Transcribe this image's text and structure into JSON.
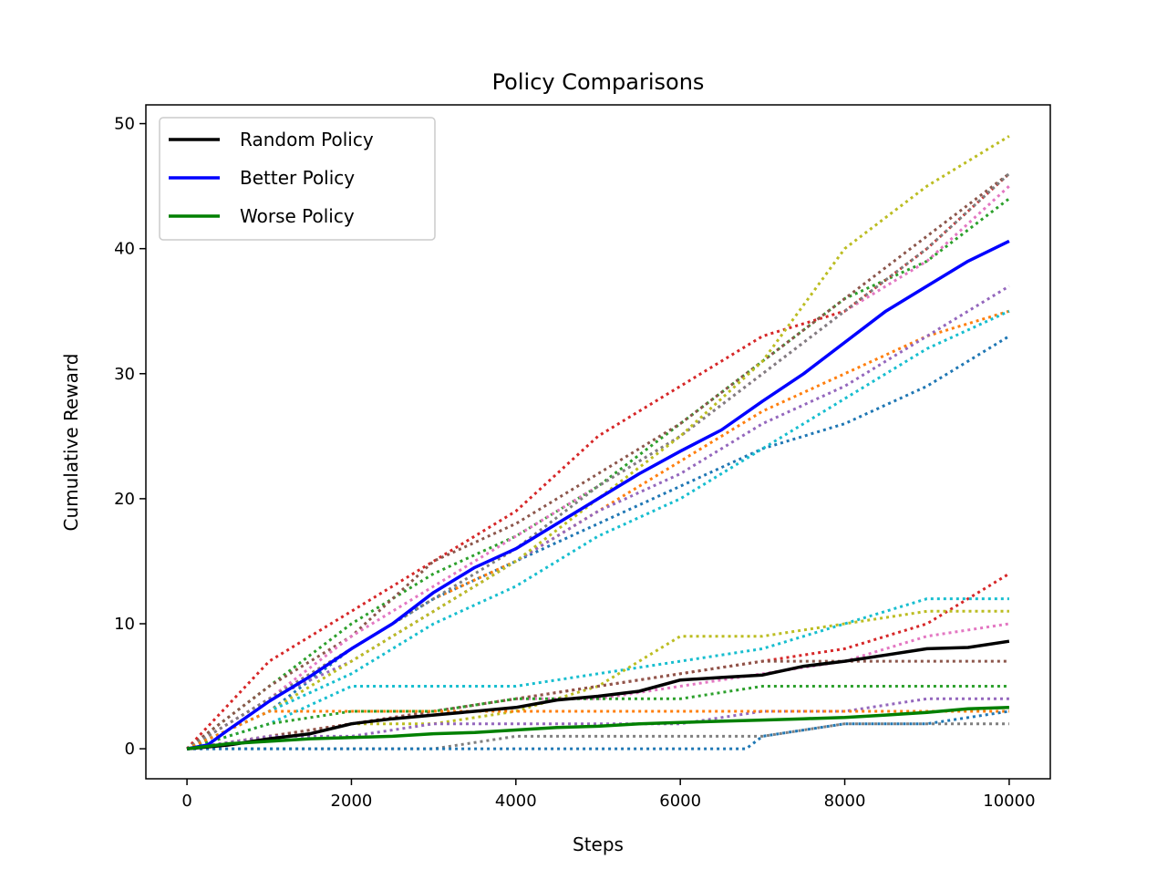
{
  "chart_data": {
    "type": "line",
    "title": "Policy Comparisons",
    "xlabel": "Steps",
    "ylabel": "Cumulative Reward",
    "xlim": [
      -500,
      10500
    ],
    "ylim": [
      -2.4,
      51.5
    ],
    "xticks": [
      0,
      2000,
      4000,
      6000,
      8000,
      10000
    ],
    "yticks": [
      0,
      10,
      20,
      30,
      40,
      50
    ],
    "grid": false,
    "legend_position": "upper-left",
    "series": [
      {
        "name": "Random Policy",
        "color": "#000000",
        "style": "solid",
        "in_legend": true,
        "x": [
          0,
          500,
          1000,
          1500,
          2000,
          2500,
          3000,
          3500,
          4000,
          4500,
          5000,
          5500,
          6000,
          6500,
          7000,
          7500,
          8000,
          8500,
          9000,
          9500,
          10000
        ],
        "y": [
          0,
          0.3,
          0.8,
          1.2,
          2.0,
          2.4,
          2.7,
          3.0,
          3.3,
          3.9,
          4.2,
          4.6,
          5.5,
          5.7,
          5.9,
          6.6,
          7.0,
          7.5,
          8.0,
          8.1,
          8.6
        ]
      },
      {
        "name": "Better Policy",
        "color": "#0000ff",
        "style": "solid",
        "in_legend": true,
        "x": [
          0,
          250,
          500,
          1000,
          1500,
          2000,
          2500,
          3000,
          3500,
          4000,
          4500,
          5000,
          5500,
          6000,
          6500,
          7000,
          7500,
          8000,
          8500,
          9000,
          9500,
          10000
        ],
        "y": [
          0,
          0.3,
          1.5,
          3.8,
          5.8,
          8.0,
          10.0,
          12.5,
          14.5,
          16.0,
          18.0,
          20.0,
          22.0,
          23.8,
          25.5,
          27.8,
          30.0,
          32.5,
          35.0,
          37.0,
          39.0,
          40.6
        ]
      },
      {
        "name": "Worse Policy",
        "color": "#008000",
        "style": "solid",
        "in_legend": true,
        "x": [
          0,
          500,
          1000,
          1500,
          2000,
          2500,
          3000,
          3500,
          4000,
          4500,
          5000,
          5500,
          6000,
          6500,
          7000,
          7500,
          8000,
          8500,
          9000,
          9500,
          10000
        ],
        "y": [
          0,
          0.4,
          0.6,
          0.8,
          0.9,
          1.0,
          1.2,
          1.3,
          1.5,
          1.7,
          1.8,
          2.0,
          2.1,
          2.2,
          2.3,
          2.4,
          2.5,
          2.7,
          2.9,
          3.2,
          3.3
        ]
      },
      {
        "name": "",
        "color": "#1f77b4",
        "style": "dotted",
        "in_legend": false,
        "x": [
          0,
          1000,
          2000,
          3000,
          4000,
          5000,
          6000,
          7000,
          8000,
          9000,
          10000
        ],
        "y": [
          0,
          3,
          8,
          12,
          15,
          18,
          21,
          24,
          26,
          29,
          33
        ]
      },
      {
        "name": "",
        "color": "#ff7f0e",
        "style": "dotted",
        "in_legend": false,
        "x": [
          0,
          1000,
          2000,
          3000,
          4000,
          5000,
          6000,
          7000,
          8000,
          9000,
          10000
        ],
        "y": [
          0,
          4,
          8,
          12,
          15,
          19,
          23,
          27,
          30,
          33,
          35
        ]
      },
      {
        "name": "",
        "color": "#2ca02c",
        "style": "dotted",
        "in_legend": false,
        "x": [
          0,
          1000,
          2000,
          3000,
          4000,
          5000,
          6000,
          7000,
          8000,
          9000,
          10000
        ],
        "y": [
          0,
          5,
          10,
          14,
          17,
          21,
          26,
          31,
          36,
          39,
          44
        ]
      },
      {
        "name": "",
        "color": "#d62728",
        "style": "dotted",
        "in_legend": false,
        "x": [
          0,
          1000,
          2000,
          3000,
          4000,
          5000,
          6000,
          7000,
          8000,
          9000,
          10000
        ],
        "y": [
          0,
          7,
          11,
          15,
          19,
          25,
          29,
          33,
          35,
          40,
          46
        ]
      },
      {
        "name": "",
        "color": "#9467bd",
        "style": "dotted",
        "in_legend": false,
        "x": [
          0,
          1000,
          2000,
          3000,
          4000,
          5000,
          6000,
          7000,
          8000,
          9000,
          10000
        ],
        "y": [
          0,
          4,
          7,
          11,
          15,
          19,
          22,
          26,
          29,
          33,
          37
        ]
      },
      {
        "name": "",
        "color": "#8c564b",
        "style": "dotted",
        "in_legend": false,
        "x": [
          0,
          1000,
          2000,
          3000,
          4000,
          5000,
          6000,
          7000,
          8000,
          9000,
          10000
        ],
        "y": [
          0,
          5,
          9,
          15,
          18,
          22,
          26,
          31,
          36,
          41,
          46
        ]
      },
      {
        "name": "",
        "color": "#e377c2",
        "style": "dotted",
        "in_legend": false,
        "x": [
          0,
          1000,
          2000,
          3000,
          4000,
          5000,
          6000,
          7000,
          8000,
          9000,
          10000
        ],
        "y": [
          0,
          4,
          9,
          13,
          17,
          21,
          25,
          30,
          35,
          39,
          45
        ]
      },
      {
        "name": "",
        "color": "#7f7f7f",
        "style": "dotted",
        "in_legend": false,
        "x": [
          0,
          1000,
          2000,
          3000,
          4000,
          5000,
          6000,
          7000,
          8000,
          9000,
          10000
        ],
        "y": [
          0,
          4,
          8,
          12,
          16,
          21,
          25,
          30,
          35,
          40,
          46
        ]
      },
      {
        "name": "",
        "color": "#bcbd22",
        "style": "dotted",
        "in_legend": false,
        "x": [
          0,
          1000,
          2000,
          3000,
          4000,
          5000,
          6000,
          7000,
          8000,
          9000,
          10000
        ],
        "y": [
          0,
          3,
          7,
          11,
          15,
          20,
          25,
          31,
          40,
          45,
          49
        ]
      },
      {
        "name": "",
        "color": "#17becf",
        "style": "dotted",
        "in_legend": false,
        "x": [
          0,
          1000,
          2000,
          3000,
          4000,
          5000,
          6000,
          7000,
          8000,
          9000,
          10000
        ],
        "y": [
          0,
          3,
          6,
          10,
          13,
          17,
          20,
          24,
          28,
          32,
          35
        ]
      },
      {
        "name": "",
        "color": "#d62728",
        "style": "dotted",
        "in_legend": false,
        "x": [
          0,
          1000,
          2000,
          3000,
          4000,
          5000,
          6000,
          7000,
          8000,
          9000,
          10000
        ],
        "y": [
          0,
          1,
          2,
          3,
          4,
          5,
          6,
          7,
          8,
          10,
          14
        ]
      },
      {
        "name": "",
        "color": "#17becf",
        "style": "dotted",
        "in_legend": false,
        "x": [
          0,
          1000,
          2000,
          3000,
          4000,
          5000,
          6000,
          7000,
          8000,
          9000,
          10000
        ],
        "y": [
          0,
          2,
          5,
          5,
          5,
          6,
          7,
          8,
          10,
          12,
          12
        ]
      },
      {
        "name": "",
        "color": "#bcbd22",
        "style": "dotted",
        "in_legend": false,
        "x": [
          0,
          1000,
          2000,
          3000,
          4000,
          5000,
          6000,
          7000,
          8000,
          9000,
          10000
        ],
        "y": [
          0,
          1,
          2,
          2,
          3,
          5,
          9,
          9,
          10,
          11,
          11
        ]
      },
      {
        "name": "",
        "color": "#e377c2",
        "style": "dotted",
        "in_legend": false,
        "x": [
          0,
          1000,
          2000,
          3000,
          4000,
          5000,
          6000,
          7000,
          8000,
          9000,
          10000
        ],
        "y": [
          0,
          1,
          2,
          3,
          4,
          4,
          5,
          6,
          7,
          9,
          10
        ]
      },
      {
        "name": "",
        "color": "#8c564b",
        "style": "dotted",
        "in_legend": false,
        "x": [
          0,
          1000,
          2000,
          3000,
          4000,
          5000,
          6000,
          7000,
          8000,
          9000,
          10000
        ],
        "y": [
          0,
          1,
          2,
          3,
          4,
          5,
          6,
          7,
          7,
          7,
          7
        ]
      },
      {
        "name": "",
        "color": "#2ca02c",
        "style": "dotted",
        "in_legend": false,
        "x": [
          0,
          1000,
          2000,
          3000,
          4000,
          5000,
          6000,
          7000,
          8000,
          9000,
          10000
        ],
        "y": [
          0,
          2,
          3,
          3,
          4,
          4,
          4,
          5,
          5,
          5,
          5
        ]
      },
      {
        "name": "",
        "color": "#9467bd",
        "style": "dotted",
        "in_legend": false,
        "x": [
          0,
          1000,
          2000,
          3000,
          4000,
          5000,
          6000,
          7000,
          8000,
          9000,
          10000
        ],
        "y": [
          0,
          1,
          1,
          2,
          2,
          2,
          2,
          3,
          3,
          4,
          4
        ]
      },
      {
        "name": "",
        "color": "#ff7f0e",
        "style": "dotted",
        "in_legend": false,
        "x": [
          0,
          1000,
          2000,
          3000,
          4000,
          5000,
          6000,
          7000,
          8000,
          9000,
          10000
        ],
        "y": [
          0,
          3,
          3,
          3,
          3,
          3,
          3,
          3,
          3,
          3,
          3
        ]
      },
      {
        "name": "",
        "color": "#7f7f7f",
        "style": "dotted",
        "in_legend": false,
        "x": [
          0,
          1000,
          2000,
          3000,
          4000,
          5000,
          6000,
          7000,
          8000,
          9000,
          10000
        ],
        "y": [
          0,
          0,
          0,
          0,
          1,
          1,
          1,
          1,
          2,
          2,
          2
        ]
      },
      {
        "name": "",
        "color": "#1f77b4",
        "style": "dotted",
        "in_legend": false,
        "x": [
          0,
          1000,
          2000,
          3000,
          4000,
          5000,
          6000,
          6800,
          7000,
          8000,
          9000,
          10000
        ],
        "y": [
          0,
          0,
          0,
          0,
          0,
          0,
          0,
          0,
          1,
          2,
          2,
          3
        ]
      }
    ]
  }
}
